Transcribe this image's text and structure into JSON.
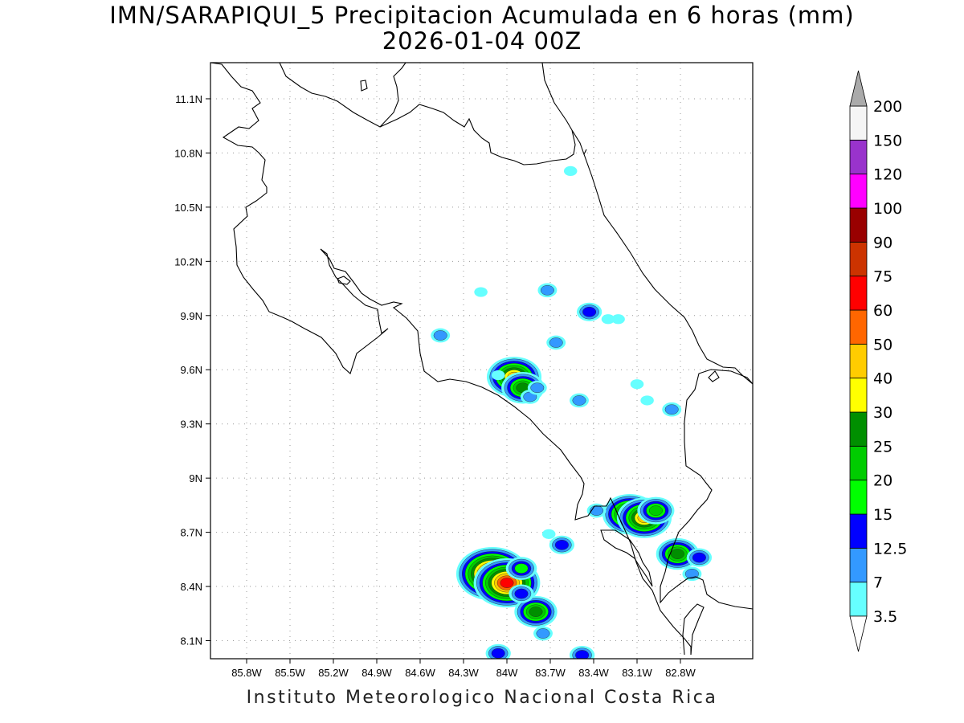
{
  "title_line1": "IMN/SARAPIQUI_5 Precipitacion Acumulada en 6 horas (mm)",
  "title_line2": "2026-01-04 00Z",
  "footer": "Instituto Meteorologico Nacional Costa Rica",
  "map": {
    "lon_range": [
      -86.05,
      -82.3
    ],
    "lat_range": [
      8.0,
      11.3
    ],
    "lon_ticks": [
      "85.8W",
      "85.5W",
      "85.2W",
      "84.9W",
      "84.6W",
      "84.3W",
      "84W",
      "83.7W",
      "83.4W",
      "83.1W",
      "82.8W"
    ],
    "lon_tick_values": [
      -85.8,
      -85.5,
      -85.2,
      -84.9,
      -84.6,
      -84.3,
      -84.0,
      -83.7,
      -83.4,
      -83.1,
      -82.8
    ],
    "lat_ticks": [
      "8.1N",
      "8.4N",
      "8.7N",
      "9N",
      "9.3N",
      "9.6N",
      "9.9N",
      "10.2N",
      "10.5N",
      "10.8N",
      "11.1N"
    ],
    "lat_tick_values": [
      8.1,
      8.4,
      8.7,
      9.0,
      9.3,
      9.6,
      9.9,
      10.2,
      10.5,
      10.8,
      11.1
    ],
    "grid": "dotted"
  },
  "colorbar": {
    "levels": [
      "3.5",
      "7",
      "12.5",
      "15",
      "20",
      "25",
      "30",
      "40",
      "50",
      "60",
      "75",
      "90",
      "100",
      "120",
      "150",
      "200"
    ],
    "colors": [
      "#66ffff",
      "#3399ff",
      "#0000ff",
      "#00ff00",
      "#00cc00",
      "#008f00",
      "#ffff00",
      "#ffcc00",
      "#ff6600",
      "#ff0000",
      "#cc3300",
      "#990000",
      "#ff00ff",
      "#9933cc",
      "#f5f5f5",
      "#aaaaaa"
    ]
  },
  "precip_cells": [
    {
      "lon": -84.1,
      "lat": 8.47,
      "max": 75
    },
    {
      "lon": -84.0,
      "lat": 8.42,
      "max": 60
    },
    {
      "lon": -83.9,
      "lat": 8.5,
      "max": 15
    },
    {
      "lon": -83.8,
      "lat": 8.26,
      "max": 25
    },
    {
      "lon": -83.9,
      "lat": 8.36,
      "max": 12.5
    },
    {
      "lon": -83.75,
      "lat": 8.14,
      "max": 7
    },
    {
      "lon": -84.06,
      "lat": 8.03,
      "max": 12.5
    },
    {
      "lon": -83.48,
      "lat": 8.02,
      "max": 12.5
    },
    {
      "lon": -83.15,
      "lat": 8.8,
      "max": 40
    },
    {
      "lon": -83.05,
      "lat": 8.78,
      "max": 40
    },
    {
      "lon": -82.97,
      "lat": 8.82,
      "max": 20
    },
    {
      "lon": -83.38,
      "lat": 8.82,
      "max": 7
    },
    {
      "lon": -83.62,
      "lat": 8.63,
      "max": 12.5
    },
    {
      "lon": -83.71,
      "lat": 8.69,
      "max": 3.5
    },
    {
      "lon": -82.82,
      "lat": 8.58,
      "max": 25
    },
    {
      "lon": -82.72,
      "lat": 8.47,
      "max": 7
    },
    {
      "lon": -82.67,
      "lat": 8.56,
      "max": 12.5
    },
    {
      "lon": -83.95,
      "lat": 9.56,
      "max": 40
    },
    {
      "lon": -83.89,
      "lat": 9.5,
      "max": 25
    },
    {
      "lon": -83.84,
      "lat": 9.45,
      "max": 7
    },
    {
      "lon": -83.79,
      "lat": 9.5,
      "max": 7
    },
    {
      "lon": -84.06,
      "lat": 9.57,
      "max": 3.5
    },
    {
      "lon": -83.5,
      "lat": 9.43,
      "max": 7
    },
    {
      "lon": -83.43,
      "lat": 9.92,
      "max": 12.5
    },
    {
      "lon": -83.66,
      "lat": 9.75,
      "max": 7
    },
    {
      "lon": -83.72,
      "lat": 10.04,
      "max": 7
    },
    {
      "lon": -84.46,
      "lat": 9.79,
      "max": 7
    },
    {
      "lon": -84.18,
      "lat": 10.03,
      "max": 3.5
    },
    {
      "lon": -82.86,
      "lat": 9.38,
      "max": 7
    },
    {
      "lon": -83.03,
      "lat": 9.43,
      "max": 3.5
    },
    {
      "lon": -83.56,
      "lat": 10.7,
      "max": 3.5
    },
    {
      "lon": -83.3,
      "lat": 9.88,
      "max": 3.5
    },
    {
      "lon": -83.23,
      "lat": 9.88,
      "max": 3.5
    },
    {
      "lon": -83.1,
      "lat": 9.52,
      "max": 3.5
    }
  ]
}
